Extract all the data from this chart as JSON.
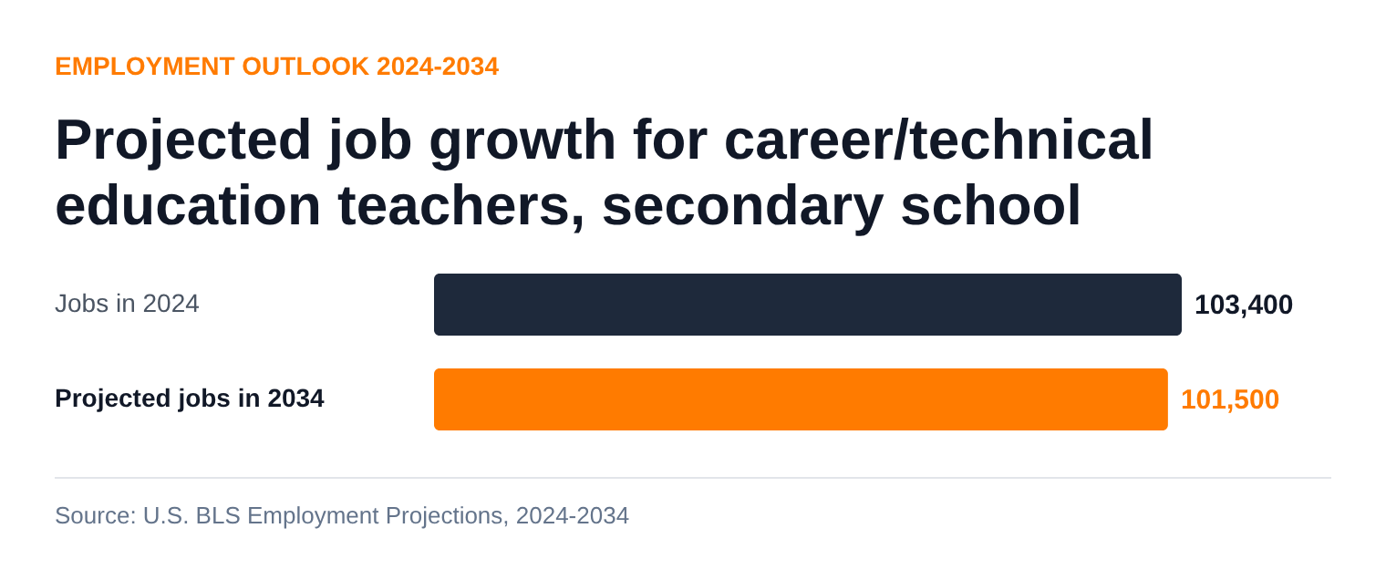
{
  "chart_data": {
    "type": "bar",
    "orientation": "horizontal",
    "subtitle": "EMPLOYMENT OUTLOOK 2024-2034",
    "title": "Projected job growth for career/technical education teachers, secondary school",
    "categories": [
      "Jobs in 2024",
      "Projected jobs in 2034"
    ],
    "values": [
      103400,
      101500
    ],
    "colors": [
      "#1e293b",
      "#ff7b00"
    ],
    "value_labels": [
      "103,400",
      "101,500"
    ],
    "annotations": [
      "Source: U.S. BLS Employment Projections, 2024-2034"
    ]
  }
}
